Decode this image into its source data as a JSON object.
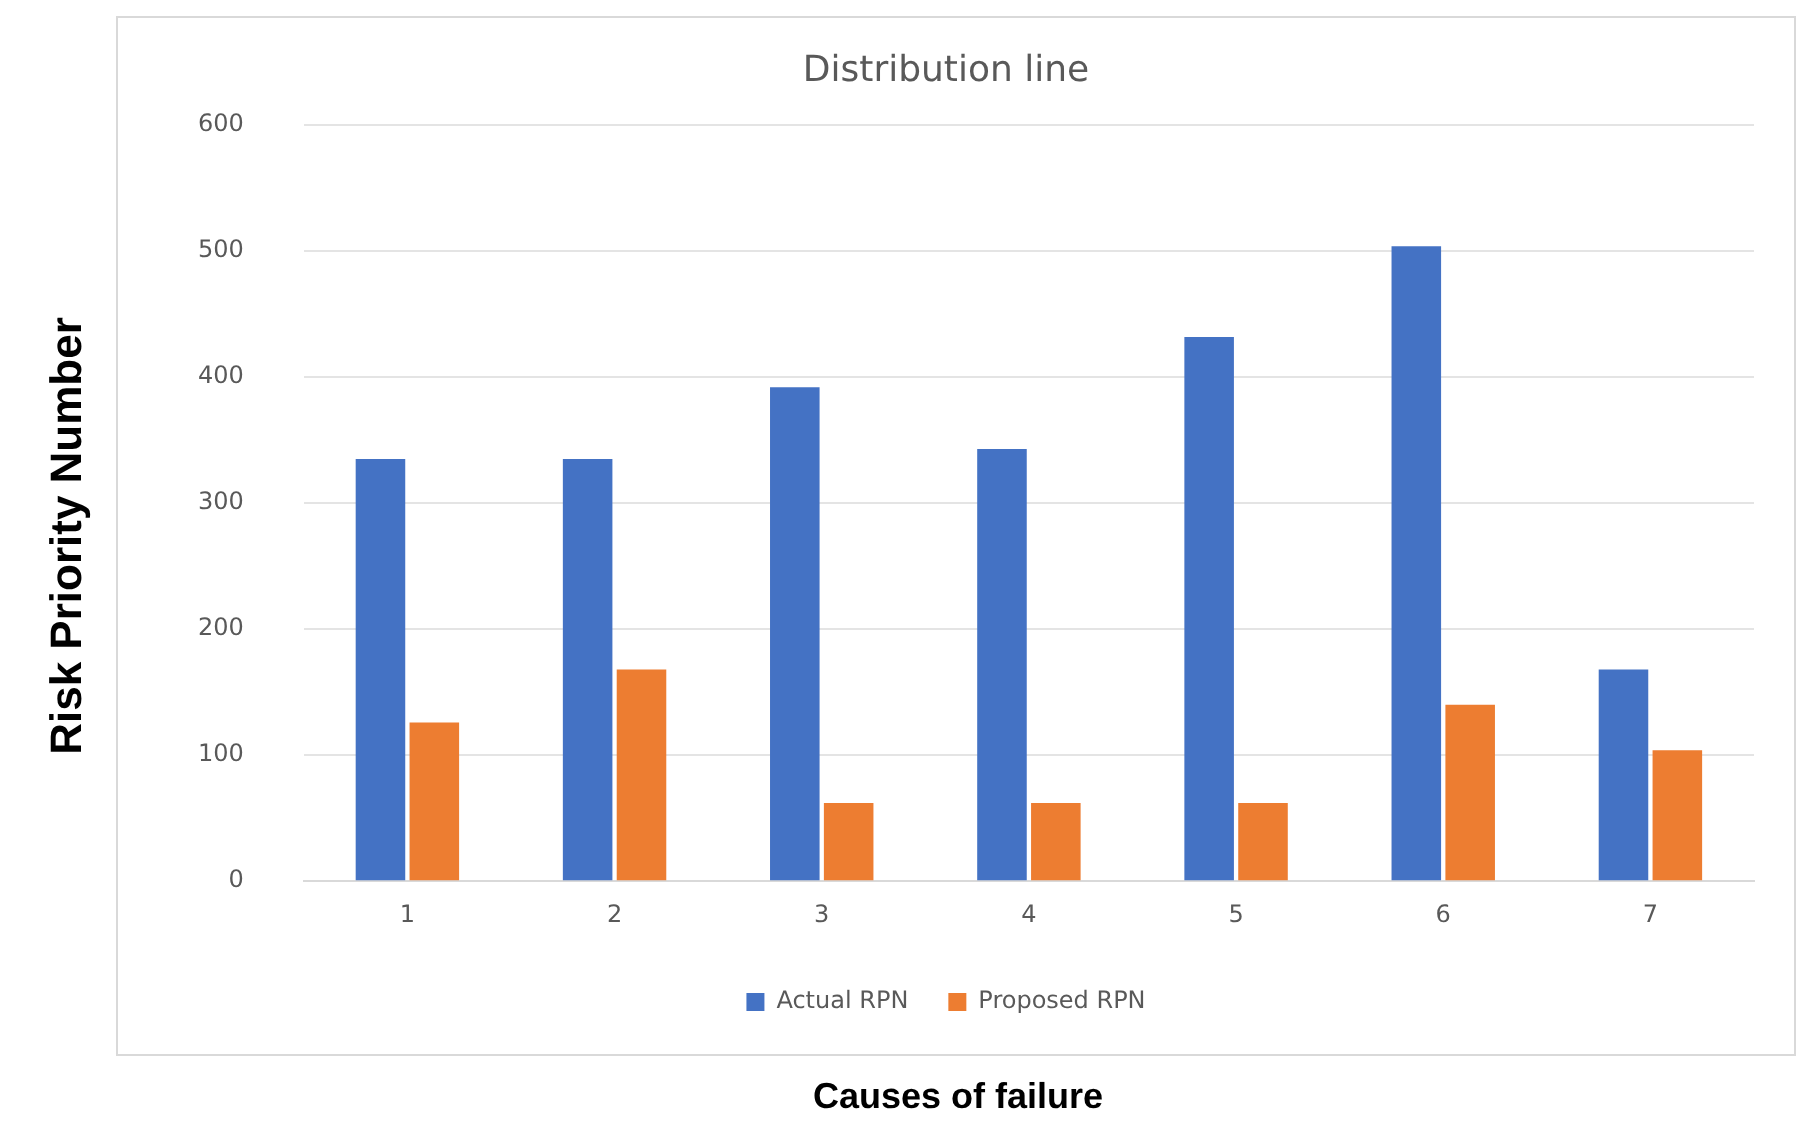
{
  "chart_data": {
    "type": "bar",
    "title": "Distribution line",
    "xlabel": "Causes of failure",
    "ylabel": "Risk Priority Number",
    "categories": [
      "1",
      "2",
      "3",
      "4",
      "5",
      "6",
      "7"
    ],
    "series": [
      {
        "name": "Actual RPN",
        "color": "#4472c4",
        "values": [
          335,
          335,
          392,
          343,
          432,
          504,
          168
        ]
      },
      {
        "name": "Proposed RPN",
        "color": "#ed7d31",
        "values": [
          126,
          168,
          62,
          62,
          62,
          140,
          104
        ]
      }
    ],
    "ylim": [
      0,
      600
    ],
    "yticks": [
      0,
      100,
      200,
      300,
      400,
      500,
      600
    ],
    "grid": "y",
    "legend": "bottom"
  }
}
